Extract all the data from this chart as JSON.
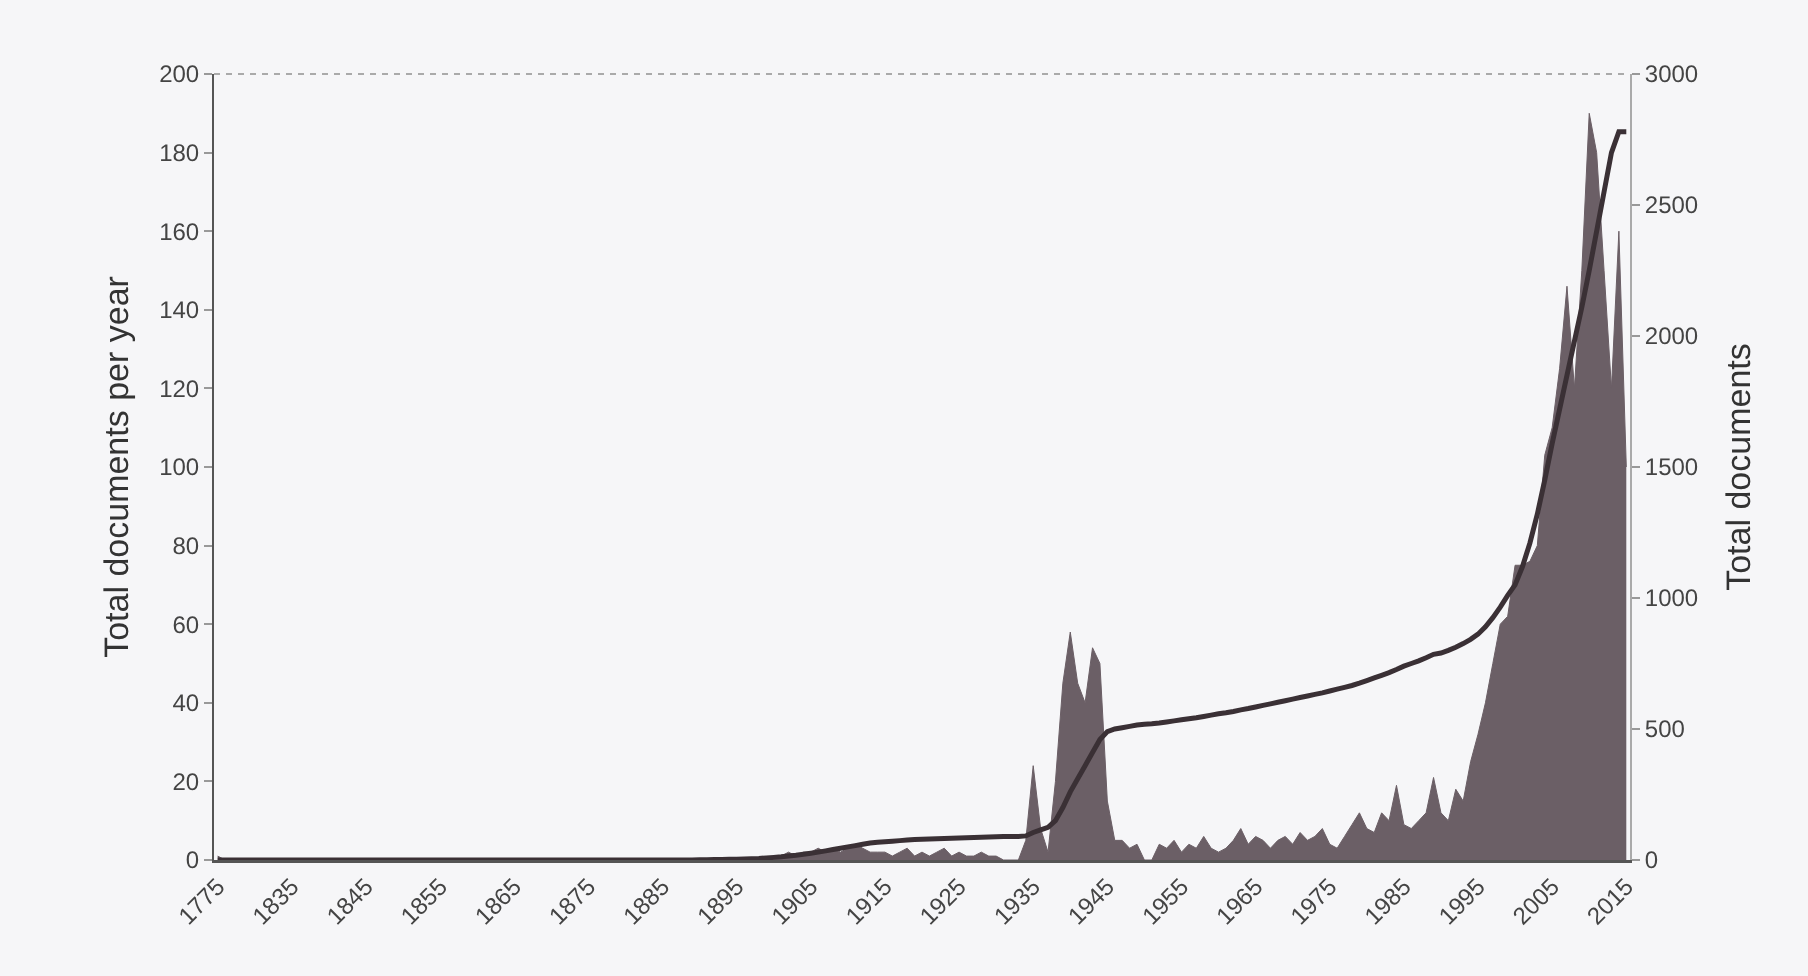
{
  "chart_data": {
    "type": "area",
    "ylabel": "Total documents per year",
    "y2label": "Total documents",
    "categories": [
      "1775",
      null,
      null,
      null,
      null,
      null,
      null,
      null,
      null,
      null,
      "1835",
      null,
      null,
      null,
      null,
      null,
      null,
      null,
      null,
      null,
      "1845",
      null,
      null,
      null,
      null,
      null,
      null,
      null,
      null,
      null,
      "1855",
      null,
      null,
      null,
      null,
      null,
      null,
      null,
      null,
      null,
      "1865",
      null,
      null,
      null,
      null,
      null,
      null,
      null,
      null,
      null,
      "1875",
      null,
      null,
      null,
      null,
      null,
      null,
      null,
      null,
      null,
      "1885",
      null,
      null,
      null,
      null,
      null,
      null,
      null,
      null,
      null,
      "1895",
      null,
      null,
      null,
      null,
      null,
      null,
      null,
      null,
      null,
      "1905",
      null,
      null,
      null,
      null,
      null,
      null,
      null,
      null,
      null,
      "1915",
      null,
      null,
      null,
      null,
      null,
      null,
      null,
      null,
      null,
      "1925",
      null,
      null,
      null,
      null,
      null,
      null,
      null,
      null,
      null,
      "1935",
      null,
      null,
      null,
      null,
      null,
      null,
      null,
      null,
      null,
      "1945",
      null,
      null,
      null,
      null,
      null,
      null,
      null,
      null,
      null,
      "1955",
      null,
      null,
      null,
      null,
      null,
      null,
      null,
      null,
      null,
      "1965",
      null,
      null,
      null,
      null,
      null,
      null,
      null,
      null,
      null,
      "1975",
      null,
      null,
      null,
      null,
      null,
      null,
      null,
      null,
      null,
      "1985",
      null,
      null,
      null,
      null,
      null,
      null,
      null,
      null,
      null,
      "1995",
      null,
      null,
      null,
      null,
      null,
      null,
      null,
      null,
      null,
      "2005",
      null,
      null,
      null,
      null,
      null,
      null,
      null,
      null,
      null,
      "2015"
    ],
    "series": [
      {
        "color": "#6b5f66",
        "values": [
          1,
          0,
          0,
          0,
          0,
          0,
          0,
          0,
          0,
          0,
          0,
          0,
          0,
          0,
          0,
          0,
          0,
          0,
          0,
          0,
          0,
          0,
          0,
          0,
          0,
          0,
          0,
          0,
          0,
          0,
          0,
          0,
          0,
          0,
          0,
          0,
          0,
          0,
          0,
          0,
          0,
          0,
          0,
          0,
          0,
          0,
          0,
          0,
          0,
          0,
          0,
          0,
          0,
          0,
          0,
          0,
          0,
          0,
          0,
          0,
          0,
          0,
          0,
          0,
          0,
          0,
          0,
          0,
          0,
          0,
          0,
          0,
          0,
          0,
          0,
          1,
          1,
          2,
          1,
          2,
          2,
          3,
          2,
          3,
          2,
          3,
          4,
          3,
          2,
          2,
          2,
          1,
          2,
          3,
          1,
          2,
          1,
          2,
          3,
          1,
          2,
          1,
          1,
          2,
          1,
          1,
          0,
          0,
          0,
          5,
          24,
          8,
          2,
          20,
          45,
          58,
          45,
          40,
          54,
          50,
          15,
          5,
          5,
          3,
          4,
          0,
          0,
          4,
          3,
          5,
          2,
          4,
          3,
          6,
          3,
          2,
          3,
          5,
          8,
          4,
          6,
          5,
          3,
          5,
          6,
          4,
          7,
          5,
          6,
          8,
          4,
          3,
          6,
          9,
          12,
          8,
          7,
          12,
          10,
          19,
          9,
          8,
          10,
          12,
          21,
          12,
          10,
          18,
          15,
          25,
          32,
          40,
          50,
          60,
          62,
          75,
          75,
          76,
          80,
          103,
          110,
          125,
          146,
          120,
          150,
          190,
          180,
          150,
          120,
          160,
          100
        ]
      },
      {
        "type": "line",
        "axis": "y2",
        "color": "#3a3035",
        "values": [
          0,
          0,
          0,
          0,
          0,
          0,
          0,
          0,
          0,
          0,
          0,
          0,
          0,
          0,
          0,
          0,
          0,
          0,
          0,
          0,
          0,
          0,
          0,
          0,
          0,
          0,
          0,
          0,
          0,
          0,
          0,
          0,
          0,
          0,
          0,
          0,
          0,
          0,
          0,
          0,
          0,
          0,
          0,
          0,
          0,
          0,
          0,
          0,
          0,
          0,
          0,
          0,
          0,
          0,
          0,
          0,
          0,
          0,
          0,
          0,
          0,
          0,
          0,
          0,
          0,
          1,
          1,
          2,
          2,
          3,
          3,
          4,
          5,
          6,
          8,
          10,
          12,
          15,
          18,
          22,
          26,
          30,
          35,
          40,
          45,
          50,
          55,
          60,
          65,
          68,
          70,
          72,
          74,
          76,
          78,
          79,
          80,
          81,
          82,
          83,
          84,
          85,
          86,
          87,
          88,
          89,
          90,
          90,
          90,
          92,
          105,
          115,
          125,
          150,
          200,
          260,
          310,
          360,
          410,
          460,
          490,
          500,
          505,
          510,
          515,
          518,
          520,
          523,
          527,
          531,
          535,
          539,
          543,
          548,
          553,
          558,
          562,
          567,
          573,
          578,
          584,
          590,
          596,
          602,
          608,
          614,
          620,
          626,
          632,
          638,
          645,
          652,
          659,
          666,
          675,
          685,
          695,
          705,
          715,
          727,
          740,
          750,
          760,
          772,
          785,
          790,
          800,
          812,
          826,
          842,
          862,
          890,
          925,
          965,
          1010,
          1050,
          1120,
          1210,
          1320,
          1450,
          1590,
          1720,
          1850,
          1980,
          2110,
          2250,
          2400,
          2550,
          2700,
          2780,
          2780
        ]
      }
    ],
    "ylim": [
      0,
      200
    ],
    "yticks": [
      0,
      20,
      40,
      60,
      80,
      100,
      120,
      140,
      160,
      180,
      200
    ],
    "y2lim": [
      0,
      3000
    ],
    "y2ticks": [
      0,
      500,
      1000,
      1500,
      2000,
      2500,
      3000
    ]
  }
}
